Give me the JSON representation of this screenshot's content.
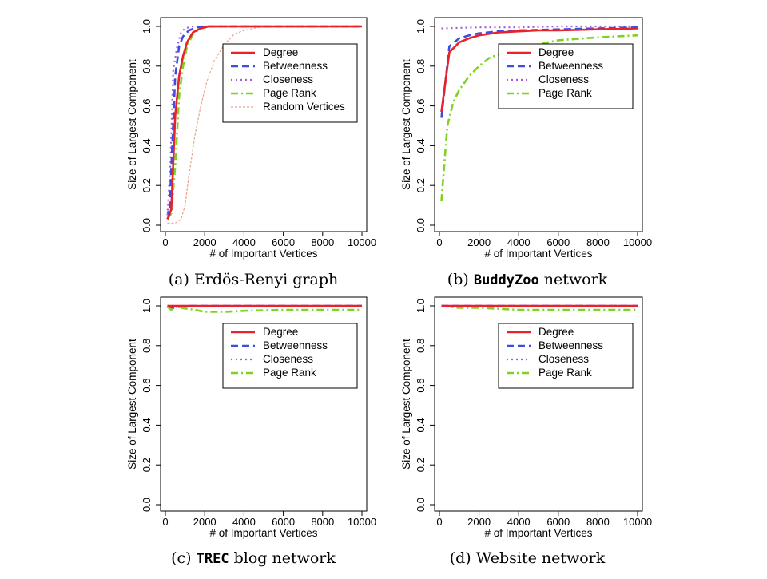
{
  "chart_data": [
    {
      "type": "line",
      "caption": {
        "prefix": "(a) ",
        "main": "Erdös-Renyi graph",
        "mono": "",
        "suffix": ""
      },
      "xlabel": "# of Important Vertices",
      "ylabel": "Size of Largest Component",
      "xlim": [
        0,
        10000
      ],
      "ylim": [
        0,
        1
      ],
      "xticks": [
        "0",
        "2000",
        "4000",
        "6000",
        "8000",
        "10000"
      ],
      "yticks": [
        "0.0",
        "0.2",
        "0.4",
        "0.6",
        "0.8",
        "1.0"
      ],
      "legend": "top-right",
      "series": [
        {
          "name": "Degree",
          "color": "#e8212a",
          "dash": "solid",
          "x": [
            100,
            300,
            500,
            700,
            900,
            1100,
            1400,
            1800,
            2200,
            3000,
            5000,
            10000
          ],
          "y": [
            0.03,
            0.08,
            0.55,
            0.75,
            0.85,
            0.92,
            0.97,
            0.99,
            1.0,
            1.0,
            1.0,
            1.0
          ]
        },
        {
          "name": "Betweenness",
          "color": "#3a4fe0",
          "dash": "dashed",
          "x": [
            100,
            200,
            350,
            500,
            700,
            900,
            1200,
            1600,
            2000,
            3000,
            10000
          ],
          "y": [
            0.07,
            0.05,
            0.4,
            0.75,
            0.9,
            0.95,
            0.98,
            0.995,
            1.0,
            1.0,
            1.0
          ]
        },
        {
          "name": "Closeness",
          "color": "#a05cd6",
          "dash": "dotted",
          "x": [
            100,
            250,
            400,
            600,
            800,
            1000,
            1400,
            2000,
            3000,
            10000
          ],
          "y": [
            0.05,
            0.3,
            0.78,
            0.9,
            0.97,
            0.99,
            1.0,
            1.0,
            1.0,
            1.0
          ]
        },
        {
          "name": "Page Rank",
          "color": "#7ed321",
          "dash": "dashdot",
          "x": [
            100,
            300,
            500,
            700,
            900,
            1100,
            1400,
            1800,
            2200,
            3000,
            10000
          ],
          "y": [
            0.03,
            0.06,
            0.3,
            0.65,
            0.8,
            0.9,
            0.96,
            0.99,
            1.0,
            1.0,
            1.0
          ]
        },
        {
          "name": "Random Vertices",
          "color": "#f0a08c",
          "dash": "fine",
          "x": [
            100,
            500,
            800,
            1000,
            1200,
            1500,
            1800,
            2100,
            2500,
            3000,
            3500,
            4000,
            5000,
            10000
          ],
          "y": [
            0.01,
            0.01,
            0.03,
            0.1,
            0.25,
            0.45,
            0.6,
            0.72,
            0.83,
            0.91,
            0.96,
            0.98,
            1.0,
            1.0
          ]
        }
      ]
    },
    {
      "type": "line",
      "caption": {
        "prefix": "(b) ",
        "main": "",
        "mono": "BuddyZoo",
        "suffix": " network"
      },
      "xlabel": "# of Important Vertices",
      "ylabel": "Size of Largest Component",
      "xlim": [
        0,
        10000
      ],
      "ylim": [
        0,
        1
      ],
      "xticks": [
        "0",
        "2000",
        "4000",
        "6000",
        "8000",
        "10000"
      ],
      "yticks": [
        "0.0",
        "0.2",
        "0.4",
        "0.6",
        "0.8",
        "1.0"
      ],
      "legend": "top-right",
      "series": [
        {
          "name": "Degree",
          "color": "#e8212a",
          "dash": "solid",
          "x": [
            100,
            500,
            1000,
            1500,
            2000,
            3000,
            4000,
            5000,
            6000,
            8000,
            10000
          ],
          "y": [
            0.57,
            0.87,
            0.92,
            0.94,
            0.955,
            0.97,
            0.975,
            0.98,
            0.98,
            0.985,
            0.99
          ]
        },
        {
          "name": "Betweenness",
          "color": "#3a4fe0",
          "dash": "dashed",
          "x": [
            100,
            500,
            1000,
            1500,
            2000,
            3000,
            4000,
            6000,
            8000,
            10000
          ],
          "y": [
            0.54,
            0.9,
            0.94,
            0.955,
            0.965,
            0.975,
            0.98,
            0.985,
            0.99,
            0.995
          ]
        },
        {
          "name": "Closeness",
          "color": "#a05cd6",
          "dash": "dotted",
          "x": [
            100,
            2000,
            4000,
            6000,
            8000,
            10000
          ],
          "y": [
            0.99,
            0.995,
            0.995,
            1.0,
            1.0,
            1.0
          ]
        },
        {
          "name": "Page Rank",
          "color": "#7ed321",
          "dash": "dashdot",
          "x": [
            100,
            400,
            700,
            1000,
            1500,
            2000,
            2500,
            3000,
            4000,
            5000,
            6000,
            8000,
            10000
          ],
          "y": [
            0.12,
            0.5,
            0.62,
            0.68,
            0.75,
            0.8,
            0.84,
            0.86,
            0.89,
            0.91,
            0.93,
            0.945,
            0.955
          ]
        }
      ]
    },
    {
      "type": "line",
      "caption": {
        "prefix": "(c) ",
        "main": "",
        "mono": "TREC",
        "suffix": " blog network"
      },
      "xlabel": "# of Important Vertices",
      "ylabel": "Size of Largest Component",
      "xlim": [
        0,
        10000
      ],
      "ylim": [
        0,
        1
      ],
      "xticks": [
        "0",
        "2000",
        "4000",
        "6000",
        "8000",
        "10000"
      ],
      "yticks": [
        "0.0",
        "0.2",
        "0.4",
        "0.6",
        "0.8",
        "1.0"
      ],
      "legend": "top-right",
      "series": [
        {
          "name": "Degree",
          "color": "#e8212a",
          "dash": "solid",
          "x": [
            100,
            1000,
            2000,
            4000,
            6000,
            8000,
            10000
          ],
          "y": [
            1.0,
            1.0,
            1.0,
            1.0,
            1.0,
            1.0,
            1.0
          ]
        },
        {
          "name": "Betweenness",
          "color": "#3a4fe0",
          "dash": "dashed",
          "x": [
            100,
            400,
            1000,
            2000,
            4000,
            6000,
            8000,
            10000
          ],
          "y": [
            1.0,
            0.99,
            1.0,
            1.0,
            1.0,
            1.0,
            1.0,
            1.0
          ]
        },
        {
          "name": "Closeness",
          "color": "#a05cd6",
          "dash": "dotted",
          "x": [
            100,
            2000,
            4000,
            6000,
            8000,
            10000
          ],
          "y": [
            1.0,
            1.0,
            1.0,
            1.0,
            1.0,
            1.0
          ]
        },
        {
          "name": "Page Rank",
          "color": "#7ed321",
          "dash": "dashdot",
          "x": [
            100,
            300,
            500,
            800,
            1500,
            2000,
            3000,
            4000,
            6000,
            8000,
            10000
          ],
          "y": [
            0.995,
            0.98,
            0.995,
            0.99,
            0.98,
            0.97,
            0.97,
            0.975,
            0.98,
            0.98,
            0.98
          ]
        }
      ]
    },
    {
      "type": "line",
      "caption": {
        "prefix": "(d) ",
        "main": "Website network",
        "mono": "",
        "suffix": ""
      },
      "xlabel": "# of Important Vertices",
      "ylabel": "Size of Largest Component",
      "xlim": [
        0,
        10000
      ],
      "ylim": [
        0,
        1
      ],
      "xticks": [
        "0",
        "2000",
        "4000",
        "6000",
        "8000",
        "10000"
      ],
      "yticks": [
        "0.0",
        "0.2",
        "0.4",
        "0.6",
        "0.8",
        "1.0"
      ],
      "legend": "top-right",
      "series": [
        {
          "name": "Degree",
          "color": "#e8212a",
          "dash": "solid",
          "x": [
            100,
            2000,
            4000,
            6000,
            8000,
            10000
          ],
          "y": [
            1.0,
            1.0,
            1.0,
            1.0,
            1.0,
            1.0
          ]
        },
        {
          "name": "Betweenness",
          "color": "#3a4fe0",
          "dash": "dashed",
          "x": [
            100,
            2000,
            4000,
            6000,
            8000,
            10000
          ],
          "y": [
            1.0,
            1.0,
            1.0,
            1.0,
            1.0,
            1.0
          ]
        },
        {
          "name": "Closeness",
          "color": "#a05cd6",
          "dash": "dotted",
          "x": [
            100,
            2000,
            4000,
            6000,
            8000,
            10000
          ],
          "y": [
            1.0,
            1.0,
            1.0,
            1.0,
            1.0,
            1.0
          ]
        },
        {
          "name": "Page Rank",
          "color": "#7ed321",
          "dash": "dashdot",
          "x": [
            100,
            1000,
            2000,
            3000,
            4000,
            6000,
            8000,
            10000
          ],
          "y": [
            1.0,
            0.99,
            0.99,
            0.985,
            0.98,
            0.98,
            0.98,
            0.98
          ]
        }
      ]
    }
  ]
}
